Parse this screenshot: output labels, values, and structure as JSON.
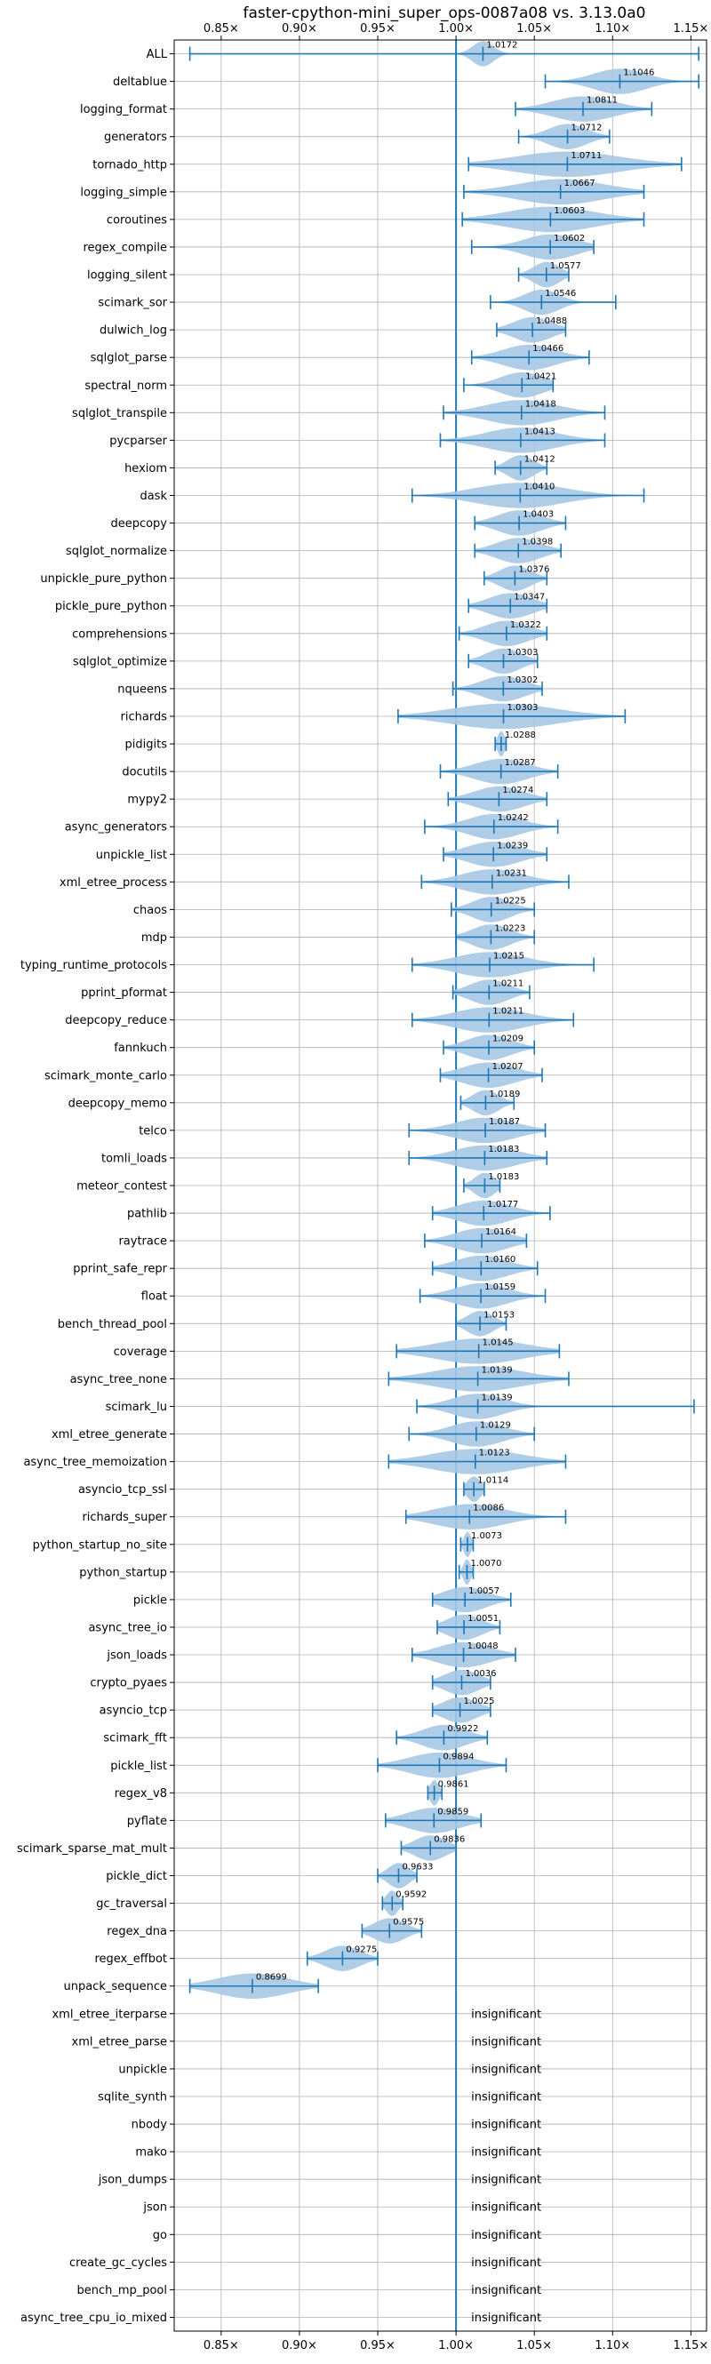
{
  "colors": {
    "violin_fill": "#a6c8e4",
    "marker": "#1f77b4",
    "grid": "#b0b0b0",
    "axis": "#000000"
  },
  "chart_data": {
    "type": "violin",
    "title": "faster-cpython-mini_super_ops-0087a08 vs. 3.13.0a0",
    "xlabel": "",
    "ylabel": "",
    "xlim": [
      0.82,
      1.16
    ],
    "x_ticks": [
      {
        "value": 0.85,
        "label": "0.85×"
      },
      {
        "value": 0.9,
        "label": "0.90×"
      },
      {
        "value": 0.95,
        "label": "0.95×"
      },
      {
        "value": 1.0,
        "label": "1.00×"
      },
      {
        "value": 1.05,
        "label": "1.05×"
      },
      {
        "value": 1.1,
        "label": "1.10×"
      },
      {
        "value": 1.15,
        "label": "1.15×"
      }
    ],
    "grid": true,
    "reference_line": 1.0,
    "insignificant_label": "insignificant",
    "benchmarks": [
      {
        "name": "ALL",
        "mean": 1.0172,
        "label": "1.0172",
        "min": 0.83,
        "max": 1.155,
        "w": 0.012
      },
      {
        "name": "deltablue",
        "mean": 1.1046,
        "label": "1.1046",
        "min": 1.057,
        "max": 1.155,
        "w": 0.03
      },
      {
        "name": "logging_format",
        "mean": 1.0811,
        "label": "1.0811",
        "min": 1.038,
        "max": 1.125,
        "w": 0.035
      },
      {
        "name": "generators",
        "mean": 1.0712,
        "label": "1.0712",
        "min": 1.04,
        "max": 1.098,
        "w": 0.022
      },
      {
        "name": "tornado_http",
        "mean": 1.0711,
        "label": "1.0711",
        "min": 1.008,
        "max": 1.144,
        "w": 0.06
      },
      {
        "name": "logging_simple",
        "mean": 1.0667,
        "label": "1.0667",
        "min": 1.005,
        "max": 1.12,
        "w": 0.05
      },
      {
        "name": "coroutines",
        "mean": 1.0603,
        "label": "1.0603",
        "min": 1.004,
        "max": 1.12,
        "w": 0.05
      },
      {
        "name": "regex_compile",
        "mean": 1.0602,
        "label": "1.0602",
        "min": 1.01,
        "max": 1.088,
        "w": 0.03
      },
      {
        "name": "logging_silent",
        "mean": 1.0577,
        "label": "1.0577",
        "min": 1.04,
        "max": 1.072,
        "w": 0.015
      },
      {
        "name": "scimark_sor",
        "mean": 1.0546,
        "label": "1.0546",
        "min": 1.022,
        "max": 1.102,
        "w": 0.02
      },
      {
        "name": "dulwich_log",
        "mean": 1.0488,
        "label": "1.0488",
        "min": 1.026,
        "max": 1.07,
        "w": 0.022
      },
      {
        "name": "sqlglot_parse",
        "mean": 1.0466,
        "label": "1.0466",
        "min": 1.01,
        "max": 1.085,
        "w": 0.03
      },
      {
        "name": "spectral_norm",
        "mean": 1.0421,
        "label": "1.0421",
        "min": 1.005,
        "max": 1.062,
        "w": 0.025
      },
      {
        "name": "sqlglot_transpile",
        "mean": 1.0418,
        "label": "1.0418",
        "min": 0.992,
        "max": 1.095,
        "w": 0.04
      },
      {
        "name": "pycparser",
        "mean": 1.0413,
        "label": "1.0413",
        "min": 0.99,
        "max": 1.095,
        "w": 0.04
      },
      {
        "name": "hexiom",
        "mean": 1.0412,
        "label": "1.0412",
        "min": 1.025,
        "max": 1.058,
        "w": 0.015
      },
      {
        "name": "dask",
        "mean": 1.041,
        "label": "1.0410",
        "min": 0.972,
        "max": 1.12,
        "w": 0.05
      },
      {
        "name": "deepcopy",
        "mean": 1.0403,
        "label": "1.0403",
        "min": 1.012,
        "max": 1.07,
        "w": 0.025
      },
      {
        "name": "sqlglot_normalize",
        "mean": 1.0398,
        "label": "1.0398",
        "min": 1.012,
        "max": 1.067,
        "w": 0.025
      },
      {
        "name": "unpickle_pure_python",
        "mean": 1.0376,
        "label": "1.0376",
        "min": 1.018,
        "max": 1.058,
        "w": 0.018
      },
      {
        "name": "pickle_pure_python",
        "mean": 1.0347,
        "label": "1.0347",
        "min": 1.008,
        "max": 1.058,
        "w": 0.025
      },
      {
        "name": "comprehensions",
        "mean": 1.0322,
        "label": "1.0322",
        "min": 1.002,
        "max": 1.058,
        "w": 0.025
      },
      {
        "name": "sqlglot_optimize",
        "mean": 1.0303,
        "label": "1.0303",
        "min": 1.008,
        "max": 1.052,
        "w": 0.02
      },
      {
        "name": "nqueens",
        "mean": 1.0302,
        "label": "1.0302",
        "min": 0.998,
        "max": 1.055,
        "w": 0.025
      },
      {
        "name": "richards",
        "mean": 1.0303,
        "label": "1.0303",
        "min": 0.963,
        "max": 1.108,
        "w": 0.06
      },
      {
        "name": "pidigits",
        "mean": 1.0288,
        "label": "1.0288",
        "min": 1.025,
        "max": 1.032,
        "w": 0.004
      },
      {
        "name": "docutils",
        "mean": 1.0287,
        "label": "1.0287",
        "min": 0.99,
        "max": 1.065,
        "w": 0.03
      },
      {
        "name": "mypy2",
        "mean": 1.0274,
        "label": "1.0274",
        "min": 0.995,
        "max": 1.058,
        "w": 0.028
      },
      {
        "name": "async_generators",
        "mean": 1.0242,
        "label": "1.0242",
        "min": 0.98,
        "max": 1.065,
        "w": 0.03
      },
      {
        "name": "unpickle_list",
        "mean": 1.0239,
        "label": "1.0239",
        "min": 0.992,
        "max": 1.058,
        "w": 0.03
      },
      {
        "name": "xml_etree_process",
        "mean": 1.0231,
        "label": "1.0231",
        "min": 0.978,
        "max": 1.072,
        "w": 0.035
      },
      {
        "name": "chaos",
        "mean": 1.0225,
        "label": "1.0225",
        "min": 0.997,
        "max": 1.05,
        "w": 0.022
      },
      {
        "name": "mdp",
        "mean": 1.0223,
        "label": "1.0223",
        "min": 1.0,
        "max": 1.05,
        "w": 0.022
      },
      {
        "name": "typing_runtime_protocols",
        "mean": 1.0215,
        "label": "1.0215",
        "min": 0.972,
        "max": 1.088,
        "w": 0.04
      },
      {
        "name": "pprint_pformat",
        "mean": 1.0211,
        "label": "1.0211",
        "min": 0.998,
        "max": 1.047,
        "w": 0.022
      },
      {
        "name": "deepcopy_reduce",
        "mean": 1.0211,
        "label": "1.0211",
        "min": 0.972,
        "max": 1.075,
        "w": 0.04
      },
      {
        "name": "fannkuch",
        "mean": 1.0209,
        "label": "1.0209",
        "min": 0.992,
        "max": 1.05,
        "w": 0.025
      },
      {
        "name": "scimark_monte_carlo",
        "mean": 1.0207,
        "label": "1.0207",
        "min": 0.99,
        "max": 1.055,
        "w": 0.03
      },
      {
        "name": "deepcopy_memo",
        "mean": 1.0189,
        "label": "1.0189",
        "min": 1.003,
        "max": 1.037,
        "w": 0.015
      },
      {
        "name": "telco",
        "mean": 1.0187,
        "label": "1.0187",
        "min": 0.97,
        "max": 1.057,
        "w": 0.035
      },
      {
        "name": "tomli_loads",
        "mean": 1.0183,
        "label": "1.0183",
        "min": 0.97,
        "max": 1.058,
        "w": 0.035
      },
      {
        "name": "meteor_contest",
        "mean": 1.0183,
        "label": "1.0183",
        "min": 1.005,
        "max": 1.028,
        "w": 0.012
      },
      {
        "name": "pathlib",
        "mean": 1.0177,
        "label": "1.0177",
        "min": 0.985,
        "max": 1.06,
        "w": 0.03
      },
      {
        "name": "raytrace",
        "mean": 1.0164,
        "label": "1.0164",
        "min": 0.98,
        "max": 1.045,
        "w": 0.03
      },
      {
        "name": "pprint_safe_repr",
        "mean": 1.016,
        "label": "1.0160",
        "min": 0.985,
        "max": 1.052,
        "w": 0.03
      },
      {
        "name": "float",
        "mean": 1.0159,
        "label": "1.0159",
        "min": 0.977,
        "max": 1.057,
        "w": 0.03
      },
      {
        "name": "bench_thread_pool",
        "mean": 1.0153,
        "label": "1.0153",
        "min": 1.0,
        "max": 1.032,
        "w": 0.015
      },
      {
        "name": "coverage",
        "mean": 1.0145,
        "label": "1.0145",
        "min": 0.962,
        "max": 1.066,
        "w": 0.05
      },
      {
        "name": "async_tree_none",
        "mean": 1.0139,
        "label": "1.0139",
        "min": 0.957,
        "max": 1.072,
        "w": 0.05
      },
      {
        "name": "scimark_lu",
        "mean": 1.0139,
        "label": "1.0139",
        "min": 0.975,
        "max": 1.152,
        "w": 0.03
      },
      {
        "name": "xml_etree_generate",
        "mean": 1.0129,
        "label": "1.0129",
        "min": 0.97,
        "max": 1.05,
        "w": 0.03
      },
      {
        "name": "async_tree_memoization",
        "mean": 1.0123,
        "label": "1.0123",
        "min": 0.957,
        "max": 1.07,
        "w": 0.05
      },
      {
        "name": "asyncio_tcp_ssl",
        "mean": 1.0114,
        "label": "1.0114",
        "min": 1.005,
        "max": 1.018,
        "w": 0.008
      },
      {
        "name": "richards_super",
        "mean": 1.0086,
        "label": "1.0086",
        "min": 0.968,
        "max": 1.07,
        "w": 0.04
      },
      {
        "name": "python_startup_no_site",
        "mean": 1.0073,
        "label": "1.0073",
        "min": 1.003,
        "max": 1.011,
        "w": 0.004
      },
      {
        "name": "python_startup",
        "mean": 1.007,
        "label": "1.0070",
        "min": 1.002,
        "max": 1.011,
        "w": 0.004
      },
      {
        "name": "pickle",
        "mean": 1.0057,
        "label": "1.0057",
        "min": 0.985,
        "max": 1.035,
        "w": 0.025
      },
      {
        "name": "async_tree_io",
        "mean": 1.0051,
        "label": "1.0051",
        "min": 0.988,
        "max": 1.028,
        "w": 0.02
      },
      {
        "name": "json_loads",
        "mean": 1.0048,
        "label": "1.0048",
        "min": 0.972,
        "max": 1.038,
        "w": 0.03
      },
      {
        "name": "crypto_pyaes",
        "mean": 1.0036,
        "label": "1.0036",
        "min": 0.985,
        "max": 1.022,
        "w": 0.02
      },
      {
        "name": "asyncio_tcp",
        "mean": 1.0025,
        "label": "1.0025",
        "min": 0.985,
        "max": 1.022,
        "w": 0.02
      },
      {
        "name": "scimark_fft",
        "mean": 0.9922,
        "label": "0.9922",
        "min": 0.962,
        "max": 1.02,
        "w": 0.025
      },
      {
        "name": "pickle_list",
        "mean": 0.9894,
        "label": "0.9894",
        "min": 0.95,
        "max": 1.032,
        "w": 0.035
      },
      {
        "name": "regex_v8",
        "mean": 0.9861,
        "label": "0.9861",
        "min": 0.982,
        "max": 0.991,
        "w": 0.005
      },
      {
        "name": "pyflate",
        "mean": 0.9859,
        "label": "0.9859",
        "min": 0.955,
        "max": 1.016,
        "w": 0.03
      },
      {
        "name": "scimark_sparse_mat_mult",
        "mean": 0.9836,
        "label": "0.9836",
        "min": 0.965,
        "max": 1.0,
        "w": 0.018
      },
      {
        "name": "pickle_dict",
        "mean": 0.9633,
        "label": "0.9633",
        "min": 0.95,
        "max": 0.975,
        "w": 0.012
      },
      {
        "name": "gc_traversal",
        "mean": 0.9592,
        "label": "0.9592",
        "min": 0.953,
        "max": 0.966,
        "w": 0.007
      },
      {
        "name": "regex_dna",
        "mean": 0.9575,
        "label": "0.9575",
        "min": 0.94,
        "max": 0.978,
        "w": 0.018
      },
      {
        "name": "regex_effbot",
        "mean": 0.9275,
        "label": "0.9275",
        "min": 0.905,
        "max": 0.95,
        "w": 0.02
      },
      {
        "name": "unpack_sequence",
        "mean": 0.8699,
        "label": "0.8699",
        "min": 0.83,
        "max": 0.912,
        "w": 0.04
      },
      {
        "name": "xml_etree_iterparse",
        "insignificant": true
      },
      {
        "name": "xml_etree_parse",
        "insignificant": true
      },
      {
        "name": "unpickle",
        "insignificant": true
      },
      {
        "name": "sqlite_synth",
        "insignificant": true
      },
      {
        "name": "nbody",
        "insignificant": true
      },
      {
        "name": "mako",
        "insignificant": true
      },
      {
        "name": "json_dumps",
        "insignificant": true
      },
      {
        "name": "json",
        "insignificant": true
      },
      {
        "name": "go",
        "insignificant": true
      },
      {
        "name": "create_gc_cycles",
        "insignificant": true
      },
      {
        "name": "bench_mp_pool",
        "insignificant": true
      },
      {
        "name": "async_tree_cpu_io_mixed",
        "insignificant": true
      }
    ]
  }
}
